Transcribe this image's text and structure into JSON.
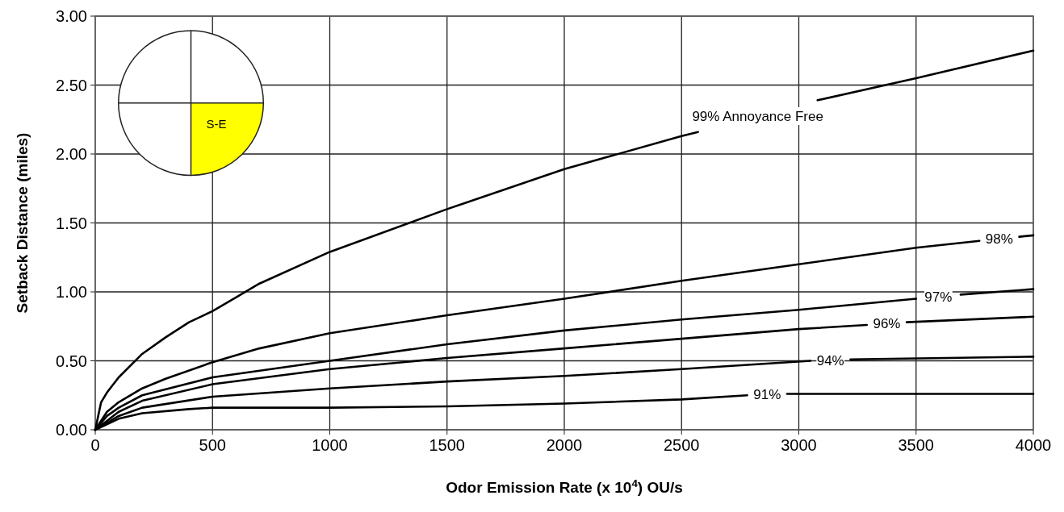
{
  "chart_data": {
    "type": "line",
    "xlabel": "Odor Emission Rate (x 10$^{4}$) OU/s",
    "ylabel": "Setback Distance (miles)",
    "xlim": [
      0,
      4000
    ],
    "xticks": [
      0,
      500,
      1000,
      1500,
      2000,
      2500,
      3000,
      3500,
      4000
    ],
    "ylim": [
      0,
      3
    ],
    "yticks": [
      {
        "value": 0,
        "label": "0.00"
      },
      {
        "value": 0.5,
        "label": "0.50"
      },
      {
        "value": 1,
        "label": "1.00"
      },
      {
        "value": 1.5,
        "label": "1.50"
      },
      {
        "value": 2,
        "label": "2.00"
      },
      {
        "value": 2.5,
        "label": "2.50"
      },
      {
        "value": 3,
        "label": "3.00"
      }
    ],
    "grid": true,
    "line_style": "solid",
    "marker": "none",
    "annotations": [
      "S-E"
    ],
    "series": [
      {
        "name": "99% Annoyance Free",
        "color": "#000000",
        "x": [
          0,
          25,
          50,
          100,
          200,
          300,
          400,
          500,
          600,
          700,
          1000,
          1500,
          2000,
          2500,
          2570,
          2800,
          3080,
          3500,
          4000
        ],
        "values": [
          0,
          0.2,
          0.27,
          0.38,
          0.55,
          0.67,
          0.78,
          0.86,
          0.96,
          1.06,
          1.29,
          1.6,
          1.89,
          2.13,
          2.16,
          null,
          2.39,
          2.55,
          2.75
        ]
      },
      {
        "name": "98%",
        "color": "#000000",
        "x": [
          0,
          50,
          100,
          200,
          300,
          500,
          700,
          1000,
          1500,
          2000,
          2500,
          3000,
          3500,
          3770,
          3850,
          3940,
          4000
        ],
        "values": [
          0,
          0.13,
          0.2,
          0.3,
          0.37,
          0.49,
          0.59,
          0.7,
          0.83,
          0.95,
          1.08,
          1.2,
          1.32,
          1.37,
          null,
          1.4,
          1.41
        ]
      },
      {
        "name": "97%",
        "color": "#000000",
        "x": [
          0,
          50,
          100,
          200,
          500,
          1000,
          1500,
          2000,
          2500,
          3000,
          3500,
          3600,
          3690,
          4000
        ],
        "values": [
          0,
          0.1,
          0.16,
          0.25,
          0.38,
          0.5,
          0.62,
          0.72,
          0.8,
          0.87,
          0.95,
          null,
          0.98,
          1.02
        ]
      },
      {
        "name": "96%",
        "color": "#000000",
        "x": [
          0,
          100,
          200,
          500,
          1000,
          1500,
          2000,
          2500,
          3000,
          3290,
          3380,
          3460,
          4000
        ],
        "values": [
          0,
          0.13,
          0.21,
          0.33,
          0.44,
          0.52,
          0.59,
          0.66,
          0.73,
          0.76,
          null,
          0.78,
          0.82
        ]
      },
      {
        "name": "94%",
        "color": "#000000",
        "x": [
          0,
          100,
          200,
          500,
          1000,
          1500,
          2000,
          2500,
          3050,
          3130,
          3220,
          4000
        ],
        "values": [
          0,
          0.1,
          0.16,
          0.24,
          0.3,
          0.35,
          0.39,
          0.44,
          0.5,
          null,
          0.51,
          0.53
        ]
      },
      {
        "name": "91%",
        "color": "#000000",
        "x": [
          0,
          100,
          200,
          400,
          500,
          1000,
          1500,
          2000,
          2500,
          2780,
          2860,
          2950,
          4000
        ],
        "values": [
          0,
          0.08,
          0.12,
          0.15,
          0.16,
          0.16,
          0.17,
          0.19,
          0.22,
          0.25,
          null,
          0.26,
          0.26
        ]
      }
    ]
  }
}
